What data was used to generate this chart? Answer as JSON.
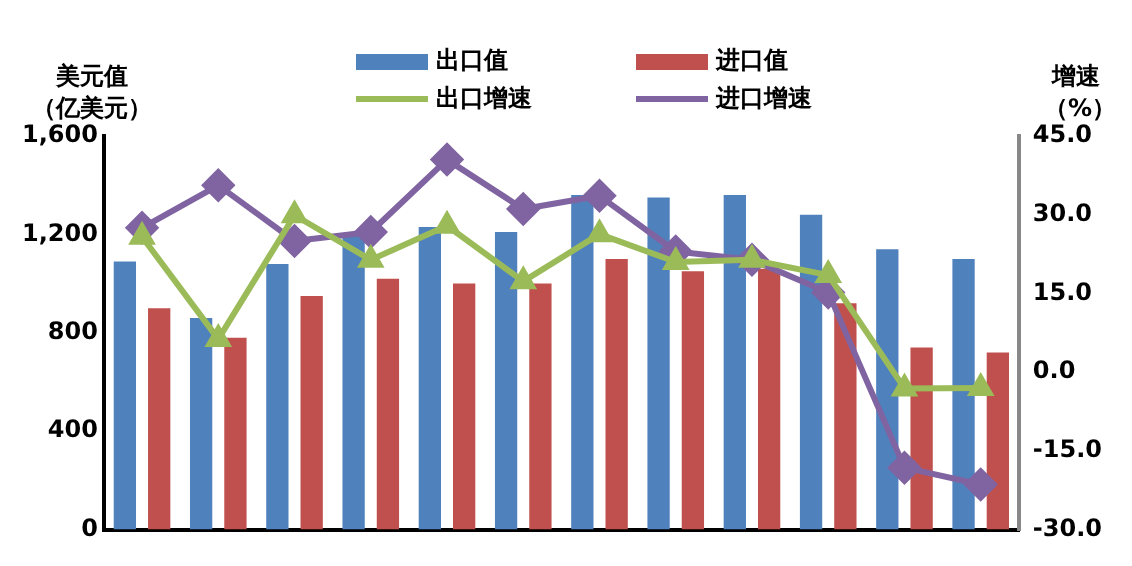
{
  "chart_data": {
    "type": "bar",
    "ylabel": "美元值（亿美元）",
    "y2label": "增速（%）",
    "categories": [
      null,
      null,
      null,
      null,
      null,
      null,
      null,
      null,
      null,
      null,
      null,
      null
    ],
    "series": [
      {
        "name": "出口值",
        "color": "#4f81bd",
        "values": [
          1090,
          860,
          1080,
          1200,
          1230,
          1210,
          1360,
          1350,
          1360,
          1280,
          1140,
          1100
        ]
      },
      {
        "name": "进口值",
        "color": "#c0504d",
        "values": [
          900,
          780,
          950,
          1020,
          1000,
          1000,
          1100,
          1050,
          1060,
          920,
          740,
          720
        ]
      },
      {
        "name": "出口增速",
        "type": "line",
        "axis": "y2",
        "marker": "triangle",
        "color": "#9bbb59",
        "values": [
          25.8,
          6.3,
          29.9,
          21.4,
          27.9,
          17.3,
          26.3,
          21,
          21.4,
          18.5,
          -3.1,
          -3
        ]
      },
      {
        "name": "进口增速",
        "type": "line",
        "axis": "y2",
        "marker": "diamond",
        "color": "#8064a2",
        "values": [
          27.5,
          35.6,
          25,
          26.7,
          40.5,
          31.1,
          33.6,
          23,
          21.4,
          15.2,
          -18.2,
          -21.4
        ]
      }
    ],
    "ylim": [
      0,
      1600
    ],
    "yticks": [
      0,
      {
        "value": 400,
        "label": "400"
      },
      {
        "value": 800,
        "label": "800"
      },
      {
        "value": 1200,
        "label": "1,200"
      },
      {
        "value": 1600,
        "label": "1,600"
      }
    ],
    "y2lim": [
      -30,
      45
    ],
    "y2ticks": [
      {
        "value": -30,
        "label": "-30.0"
      },
      {
        "value": -15,
        "label": "-15.0"
      },
      {
        "value": 0,
        "label": "0.0"
      },
      {
        "value": 15,
        "label": "15.0"
      },
      {
        "value": 30,
        "label": "30.0"
      },
      {
        "value": 45,
        "label": "45.0"
      }
    ],
    "grid": false,
    "legend": "top"
  }
}
